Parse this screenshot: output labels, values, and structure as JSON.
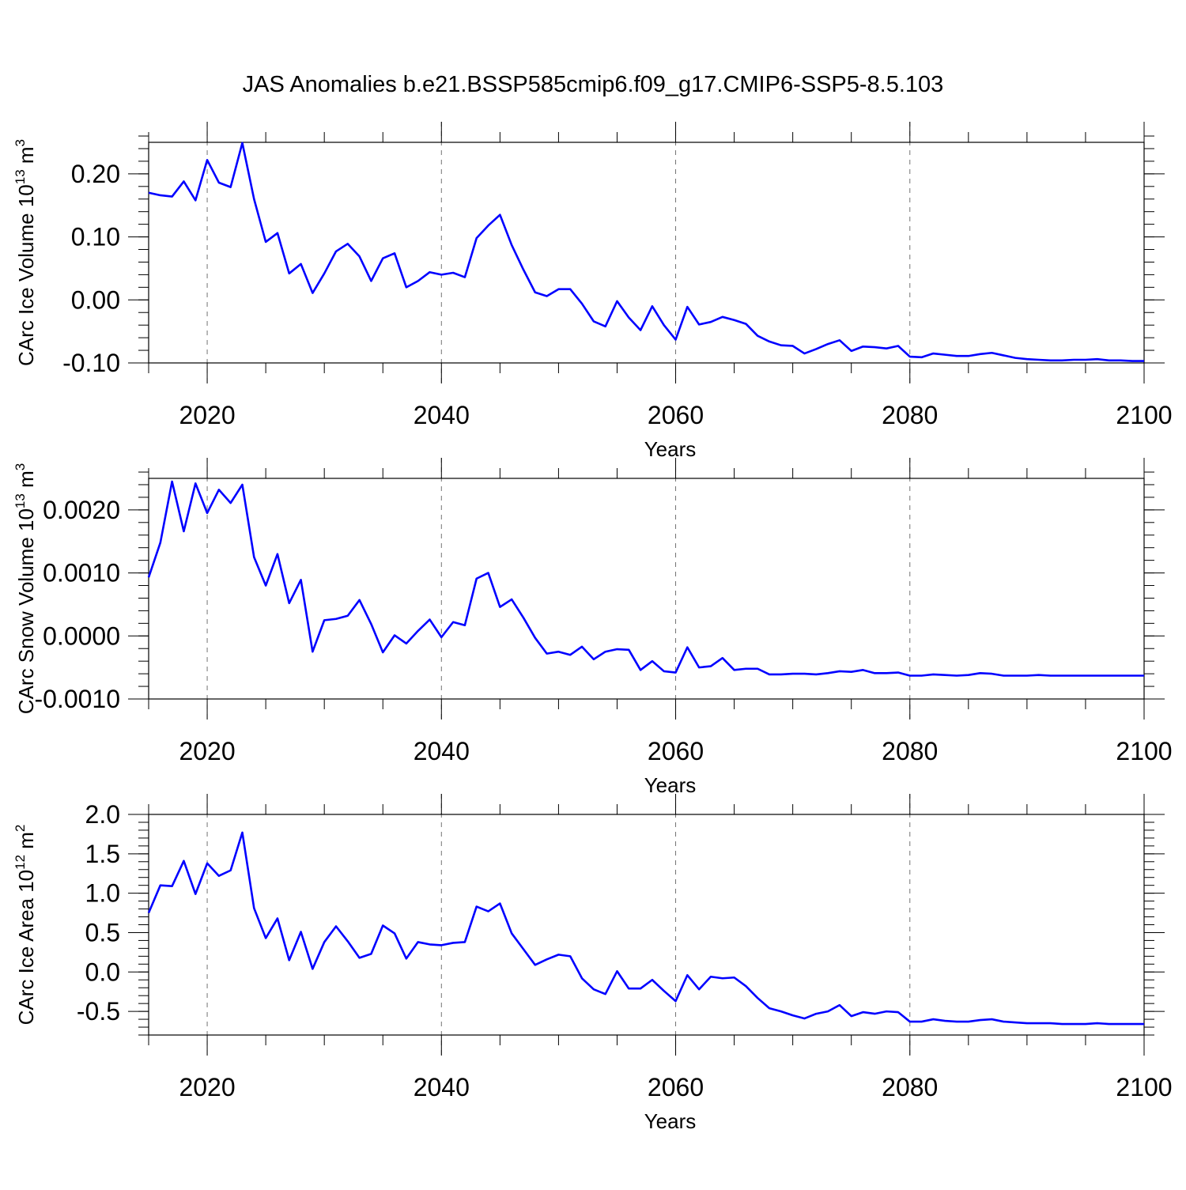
{
  "title": "JAS Anomalies b.e21.BSSP585cmip6.f09_g17.CMIP6-SSP5-8.5.103",
  "colors": {
    "line": "#0000ff",
    "axis": "#000000",
    "grid": "#000000"
  },
  "chart_data": [
    {
      "type": "line",
      "name": "ice-volume",
      "ylabel": "CArc Ice Volume 10",
      "ylabel_exp": "13",
      "ylabel_unit": " m",
      "ylabel_unit_exp": "3",
      "xlabel": "Years",
      "xlim": [
        2015,
        2100
      ],
      "ylim": [
        -0.1,
        0.25
      ],
      "xticks": [
        2020,
        2040,
        2060,
        2080,
        2100
      ],
      "xtick_labels": [
        "2020",
        "2040",
        "2060",
        "2080",
        "2100"
      ],
      "yticks": [
        -0.1,
        0.0,
        0.1,
        0.2
      ],
      "ytick_labels": [
        "-0.10",
        "0.00",
        "0.10",
        "0.20"
      ],
      "yminor_step": 0.02,
      "x": [
        2015,
        2016,
        2017,
        2018,
        2019,
        2020,
        2021,
        2022,
        2023,
        2024,
        2025,
        2026,
        2027,
        2028,
        2029,
        2030,
        2031,
        2032,
        2033,
        2034,
        2035,
        2036,
        2037,
        2038,
        2039,
        2040,
        2041,
        2042,
        2043,
        2044,
        2045,
        2046,
        2047,
        2048,
        2049,
        2050,
        2051,
        2052,
        2053,
        2054,
        2055,
        2056,
        2057,
        2058,
        2059,
        2060,
        2061,
        2062,
        2063,
        2064,
        2065,
        2066,
        2067,
        2068,
        2069,
        2070,
        2071,
        2072,
        2073,
        2074,
        2075,
        2076,
        2077,
        2078,
        2079,
        2080,
        2081,
        2082,
        2083,
        2084,
        2085,
        2086,
        2087,
        2088,
        2089,
        2090,
        2091,
        2092,
        2093,
        2094,
        2095,
        2096,
        2097,
        2098,
        2099,
        2100
      ],
      "values": [
        0.17,
        0.166,
        0.164,
        0.188,
        0.158,
        0.222,
        0.186,
        0.179,
        0.249,
        0.16,
        0.092,
        0.106,
        0.042,
        0.057,
        0.011,
        0.042,
        0.077,
        0.089,
        0.069,
        0.03,
        0.066,
        0.074,
        0.02,
        0.03,
        0.044,
        0.04,
        0.043,
        0.036,
        0.098,
        0.118,
        0.135,
        0.087,
        0.048,
        0.012,
        0.006,
        0.017,
        0.017,
        -0.006,
        -0.034,
        -0.042,
        -0.002,
        -0.028,
        -0.048,
        -0.01,
        -0.04,
        -0.063,
        -0.011,
        -0.039,
        -0.035,
        -0.027,
        -0.032,
        -0.038,
        -0.057,
        -0.066,
        -0.072,
        -0.073,
        -0.085,
        -0.078,
        -0.07,
        -0.064,
        -0.081,
        -0.074,
        -0.075,
        -0.077,
        -0.073,
        -0.09,
        -0.091,
        -0.085,
        -0.087,
        -0.089,
        -0.089,
        -0.086,
        -0.084,
        -0.088,
        -0.092,
        -0.094,
        -0.095,
        -0.096,
        -0.096,
        -0.095,
        -0.095,
        -0.094,
        -0.096,
        -0.096,
        -0.097,
        -0.097
      ]
    },
    {
      "type": "line",
      "name": "snow-volume",
      "ylabel": "CArc Snow Volume 10",
      "ylabel_exp": "13",
      "ylabel_unit": " m",
      "ylabel_unit_exp": "3",
      "xlabel": "Years",
      "xlim": [
        2015,
        2100
      ],
      "ylim": [
        -0.001,
        0.0025
      ],
      "xticks": [
        2020,
        2040,
        2060,
        2080,
        2100
      ],
      "xtick_labels": [
        "2020",
        "2040",
        "2060",
        "2080",
        "2100"
      ],
      "yticks": [
        -0.001,
        0.0,
        0.001,
        0.002
      ],
      "ytick_labels": [
        "-0.0010",
        "0.0000",
        "0.0010",
        "0.0020"
      ],
      "yminor_step": 0.0002,
      "x": [
        2015,
        2016,
        2017,
        2018,
        2019,
        2020,
        2021,
        2022,
        2023,
        2024,
        2025,
        2026,
        2027,
        2028,
        2029,
        2030,
        2031,
        2032,
        2033,
        2034,
        2035,
        2036,
        2037,
        2038,
        2039,
        2040,
        2041,
        2042,
        2043,
        2044,
        2045,
        2046,
        2047,
        2048,
        2049,
        2050,
        2051,
        2052,
        2053,
        2054,
        2055,
        2056,
        2057,
        2058,
        2059,
        2060,
        2061,
        2062,
        2063,
        2064,
        2065,
        2066,
        2067,
        2068,
        2069,
        2070,
        2071,
        2072,
        2073,
        2074,
        2075,
        2076,
        2077,
        2078,
        2079,
        2080,
        2081,
        2082,
        2083,
        2084,
        2085,
        2086,
        2087,
        2088,
        2089,
        2090,
        2091,
        2092,
        2093,
        2094,
        2095,
        2096,
        2097,
        2098,
        2099,
        2100
      ],
      "values": [
        0.00093,
        0.00148,
        0.00245,
        0.00166,
        0.00242,
        0.00195,
        0.00232,
        0.00211,
        0.0024,
        0.00125,
        0.0008,
        0.0013,
        0.00052,
        0.00089,
        -0.00025,
        0.00025,
        0.00027,
        0.00032,
        0.00057,
        0.00019,
        -0.00026,
        1e-05,
        -0.00012,
        8e-05,
        0.00026,
        -2e-05,
        0.00022,
        0.00017,
        0.00091,
        0.001,
        0.00046,
        0.00058,
        0.00029,
        -3e-05,
        -0.00028,
        -0.00025,
        -0.0003,
        -0.00017,
        -0.00037,
        -0.00025,
        -0.00021,
        -0.00022,
        -0.00054,
        -0.0004,
        -0.00056,
        -0.00058,
        -0.00018,
        -0.0005,
        -0.00048,
        -0.00035,
        -0.00054,
        -0.00052,
        -0.00052,
        -0.00061,
        -0.00061,
        -0.0006,
        -0.0006,
        -0.00061,
        -0.00059,
        -0.00056,
        -0.00057,
        -0.00054,
        -0.00059,
        -0.00059,
        -0.00058,
        -0.00063,
        -0.00063,
        -0.00061,
        -0.00062,
        -0.00063,
        -0.00062,
        -0.00059,
        -0.0006,
        -0.00063,
        -0.00063,
        -0.00063,
        -0.00062,
        -0.00063,
        -0.00063,
        -0.00063,
        -0.00063,
        -0.00063,
        -0.00063,
        -0.00063,
        -0.00063,
        -0.00063
      ]
    },
    {
      "type": "line",
      "name": "ice-area",
      "ylabel": "CArc Ice Area 10",
      "ylabel_exp": "12",
      "ylabel_unit": " m",
      "ylabel_unit_exp": "2",
      "xlabel": "Years",
      "xlim": [
        2015,
        2100
      ],
      "ylim": [
        -0.8,
        2.0
      ],
      "xticks": [
        2020,
        2040,
        2060,
        2080,
        2100
      ],
      "xtick_labels": [
        "2020",
        "2040",
        "2060",
        "2080",
        "2100"
      ],
      "yticks": [
        -0.5,
        0.0,
        0.5,
        1.0,
        1.5,
        2.0
      ],
      "ytick_labels": [
        "-0.5",
        "0.0",
        "0.5",
        "1.0",
        "1.5",
        "2.0"
      ],
      "yminor_step": 0.1,
      "x": [
        2015,
        2016,
        2017,
        2018,
        2019,
        2020,
        2021,
        2022,
        2023,
        2024,
        2025,
        2026,
        2027,
        2028,
        2029,
        2030,
        2031,
        2032,
        2033,
        2034,
        2035,
        2036,
        2037,
        2038,
        2039,
        2040,
        2041,
        2042,
        2043,
        2044,
        2045,
        2046,
        2047,
        2048,
        2049,
        2050,
        2051,
        2052,
        2053,
        2054,
        2055,
        2056,
        2057,
        2058,
        2059,
        2060,
        2061,
        2062,
        2063,
        2064,
        2065,
        2066,
        2067,
        2068,
        2069,
        2070,
        2071,
        2072,
        2073,
        2074,
        2075,
        2076,
        2077,
        2078,
        2079,
        2080,
        2081,
        2082,
        2083,
        2084,
        2085,
        2086,
        2087,
        2088,
        2089,
        2090,
        2091,
        2092,
        2093,
        2094,
        2095,
        2096,
        2097,
        2098,
        2099,
        2100
      ],
      "values": [
        0.75,
        1.1,
        1.09,
        1.41,
        0.99,
        1.38,
        1.22,
        1.29,
        1.77,
        0.81,
        0.43,
        0.68,
        0.15,
        0.51,
        0.04,
        0.38,
        0.58,
        0.39,
        0.18,
        0.23,
        0.59,
        0.49,
        0.17,
        0.38,
        0.35,
        0.34,
        0.37,
        0.38,
        0.83,
        0.77,
        0.87,
        0.49,
        0.29,
        0.09,
        0.16,
        0.22,
        0.2,
        -0.08,
        -0.22,
        -0.28,
        0.01,
        -0.21,
        -0.21,
        -0.1,
        -0.24,
        -0.37,
        -0.04,
        -0.22,
        -0.06,
        -0.08,
        -0.07,
        -0.18,
        -0.33,
        -0.46,
        -0.5,
        -0.55,
        -0.59,
        -0.53,
        -0.5,
        -0.42,
        -0.56,
        -0.51,
        -0.53,
        -0.5,
        -0.51,
        -0.63,
        -0.63,
        -0.6,
        -0.62,
        -0.63,
        -0.63,
        -0.61,
        -0.6,
        -0.63,
        -0.64,
        -0.65,
        -0.65,
        -0.65,
        -0.66,
        -0.66,
        -0.66,
        -0.65,
        -0.66,
        -0.66,
        -0.66,
        -0.66
      ]
    }
  ]
}
